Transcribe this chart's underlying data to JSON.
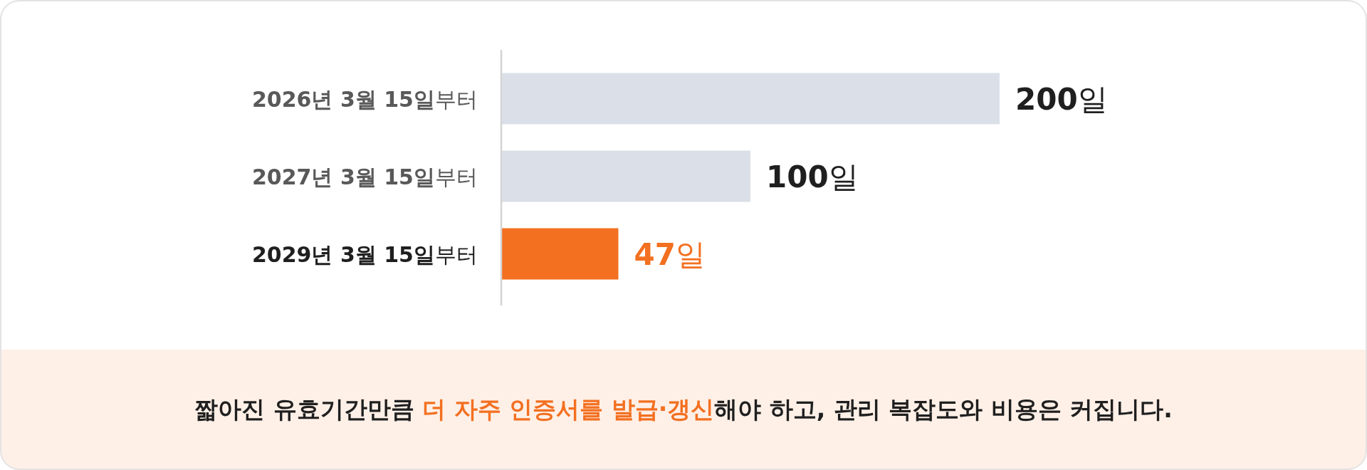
{
  "chart_data": {
    "type": "bar",
    "orientation": "horizontal",
    "categories": [
      "**2026년 3월 15일**부터",
      "**2027년 3월 15일**부터",
      "**2029년 3월 15일**부터"
    ],
    "values": [
      200,
      100,
      47
    ],
    "colors": [
      "#dbe0e8",
      "#dbe0e8",
      "#f37021"
    ],
    "value_labels": [
      "**200**일",
      "**100**일",
      "**47**일"
    ],
    "annotations": [
      "짧아진 유효기간만큼 **더 자주 인증서를 발급·갱신**해야 하고, 관리 복잡도와 비용은 커집니다."
    ]
  }
}
